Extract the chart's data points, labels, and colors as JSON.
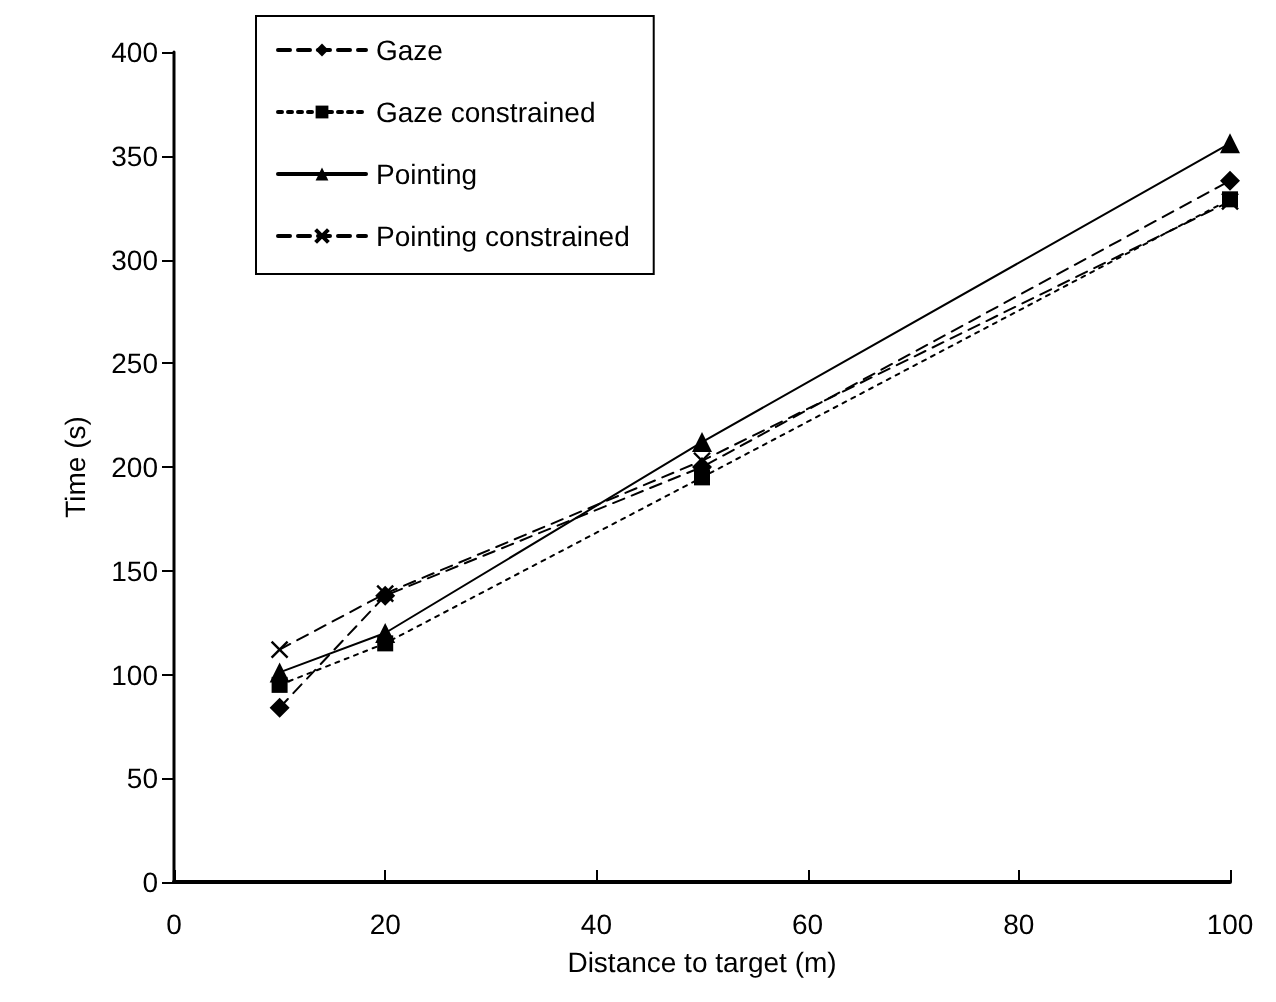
{
  "chart_data": {
    "type": "line",
    "xlabel": "Distance to target (m)",
    "ylabel": "Time (s)",
    "x": [
      10,
      20,
      50,
      100
    ],
    "xlim": [
      0,
      100
    ],
    "xticks": [
      0,
      20,
      40,
      60,
      80,
      100
    ],
    "ylim": [
      0,
      400
    ],
    "yticks": [
      0,
      50,
      100,
      150,
      200,
      250,
      300,
      350,
      400
    ],
    "grid": false,
    "legend": "top left",
    "series": [
      {
        "name": "Gaze",
        "color": "#000000",
        "marker": "diamond",
        "line_style": "dashed",
        "values": [
          84,
          138,
          200,
          338
        ]
      },
      {
        "name": "Gaze constrained",
        "color": "#000000",
        "marker": "square",
        "line_style": "dotted",
        "values": [
          95,
          115,
          195,
          329
        ]
      },
      {
        "name": "Pointing",
        "color": "#000000",
        "marker": "triangle",
        "line_style": "solid",
        "values": [
          101,
          120,
          212,
          356
        ]
      },
      {
        "name": "Pointing constrained",
        "color": "#000000",
        "marker": "cross",
        "line_style": "dashed",
        "values": [
          112,
          139,
          203,
          328
        ]
      }
    ]
  }
}
